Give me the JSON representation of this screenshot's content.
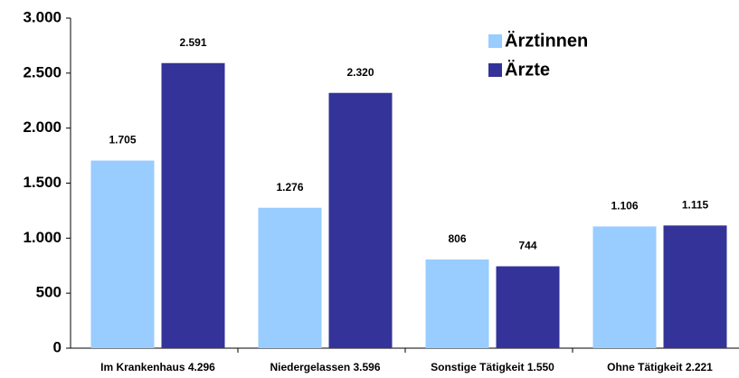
{
  "chart_data": {
    "type": "bar",
    "categories": [
      "Im Krankenhaus 4.296",
      "Niedergelassen 3.596",
      "Sonstige Tätigkeit 1.550",
      "Ohne Tätigkeit 2.221"
    ],
    "series": [
      {
        "name": "Ärztinnen",
        "color": "#99ccff",
        "values": [
          1705,
          1276,
          806,
          1106
        ],
        "value_labels": [
          "1.705",
          "1.276",
          "806",
          "1.106"
        ]
      },
      {
        "name": "Ärzte",
        "color": "#333399",
        "values": [
          2591,
          2320,
          744,
          1115
        ],
        "value_labels": [
          "2.591",
          "2.320",
          "744",
          "1.115"
        ]
      }
    ],
    "ylim": [
      0,
      3000
    ],
    "yticks": [
      0,
      500,
      {
        "value": 1000,
        "label": "1.000"
      },
      {
        "value": 1500,
        "label": "1.500"
      },
      {
        "value": 2000,
        "label": "2.000"
      },
      {
        "value": 2500,
        "label": "2.500"
      },
      {
        "value": 3000,
        "label": "3.000"
      }
    ],
    "legend": "upper right",
    "grid": false
  }
}
